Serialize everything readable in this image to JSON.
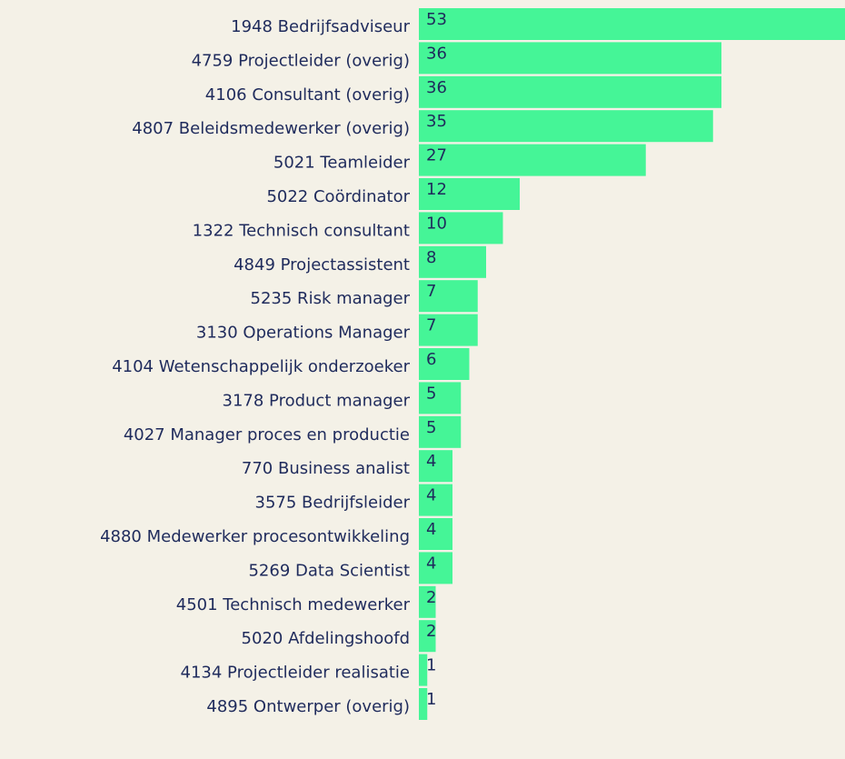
{
  "chart_data": {
    "type": "bar",
    "orientation": "horizontal",
    "color": "#45f597",
    "categories": [
      "1948 Bedrijfsadviseur",
      "4759 Projectleider (overig)",
      "4106 Consultant (overig)",
      "4807 Beleidsmedewerker (overig)",
      "5021 Teamleider",
      "5022 Coördinator",
      "1322 Technisch consultant",
      "4849 Projectassistent",
      "5235 Risk manager",
      "3130 Operations Manager",
      "4104 Wetenschappelijk onderzoeker",
      "3178 Product manager",
      "4027 Manager proces en productie",
      "770 Business analist",
      "3575 Bedrijfsleider",
      "4880 Medewerker procesontwikkeling",
      "5269 Data Scientist",
      "4501 Technisch medewerker",
      "5020 Afdelingshoofd",
      "4134 Projectleider realisatie",
      "4895 Ontwerper (overig)"
    ],
    "values": [
      53,
      36,
      36,
      35,
      27,
      12,
      10,
      8,
      7,
      7,
      6,
      5,
      5,
      4,
      4,
      4,
      4,
      2,
      2,
      1,
      1
    ]
  }
}
